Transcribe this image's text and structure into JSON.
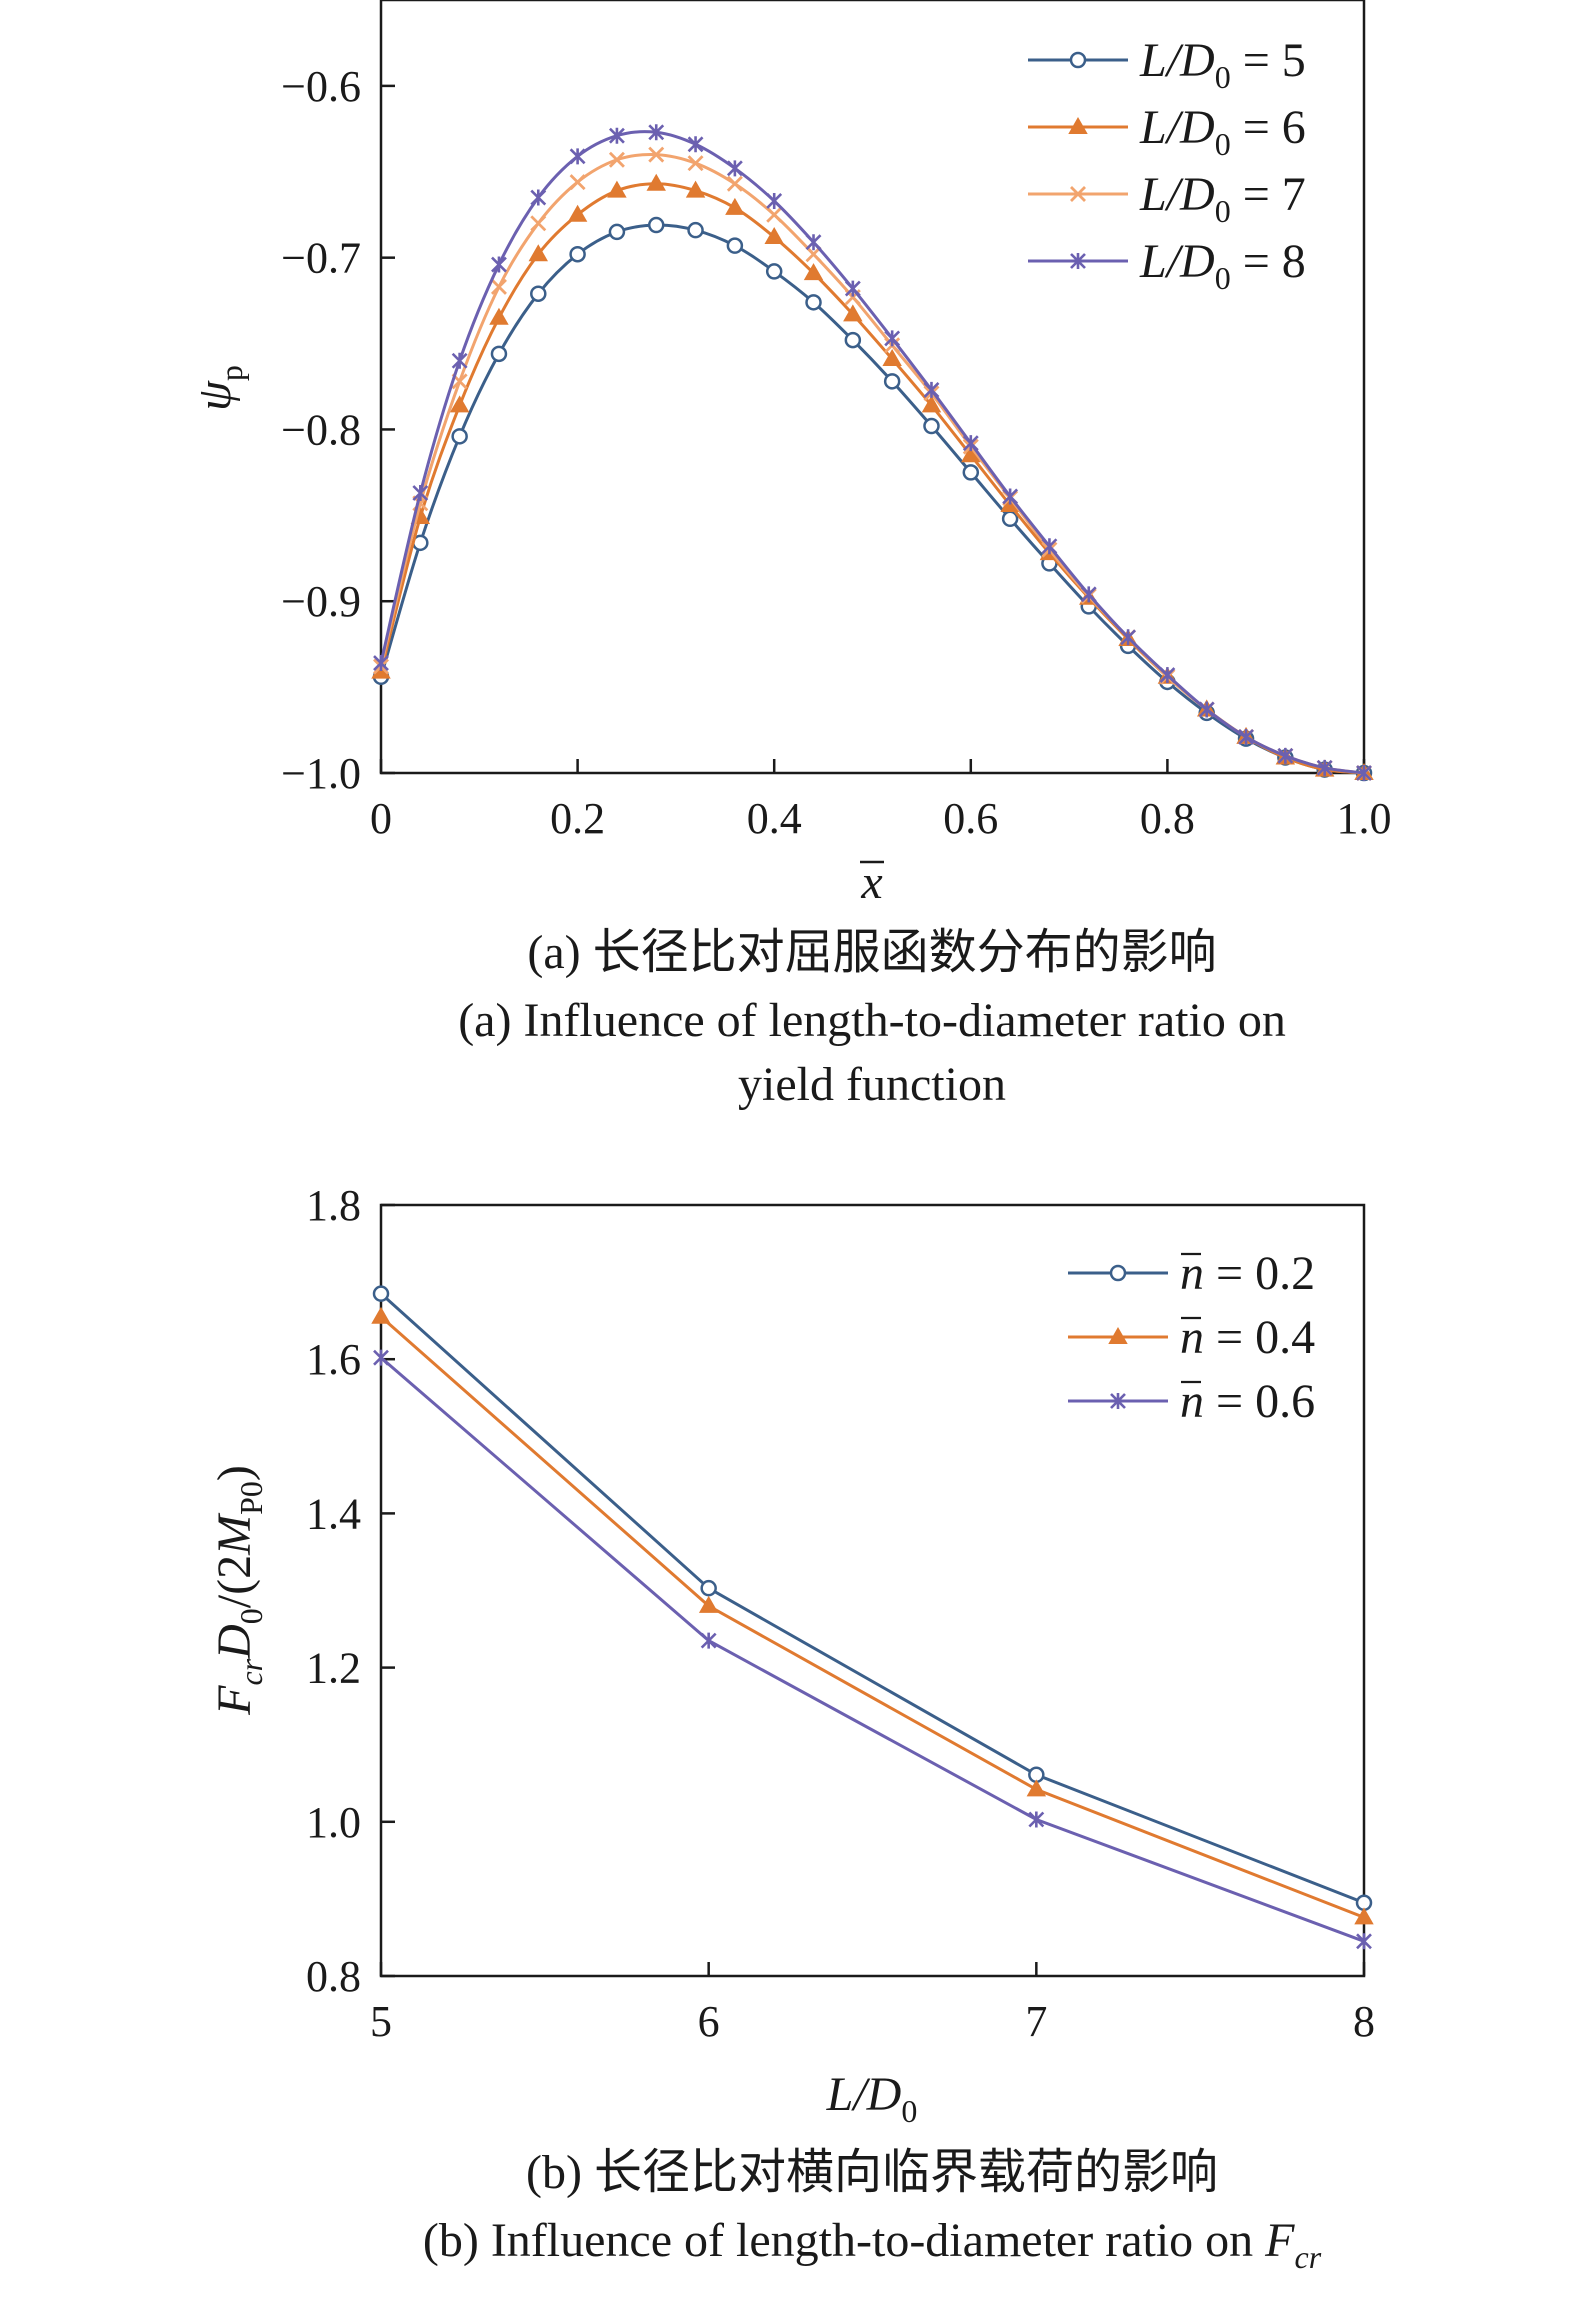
{
  "chart_data": [
    {
      "type": "line",
      "title": "",
      "xlabel": "x",
      "ylabel": "ψ",
      "ylabel_sub": "p",
      "xlim": [
        0,
        1.0
      ],
      "ylim": [
        -1.0,
        -0.55
      ],
      "x_ticks": [
        0,
        0.2,
        0.4,
        0.6,
        0.8,
        1.0
      ],
      "x_tick_labels": [
        "0",
        "0.2",
        "0.4",
        "0.6",
        "0.8",
        "1.0"
      ],
      "y_ticks": [
        -1.0,
        -0.9,
        -0.8,
        -0.7,
        -0.6
      ],
      "y_tick_labels": [
        "−1.0",
        "−0.9",
        "−0.8",
        "−0.7",
        "−0.6"
      ],
      "grid": false,
      "legend_position": "top-right",
      "x": [
        0,
        0.04,
        0.08,
        0.12,
        0.16,
        0.2,
        0.24,
        0.28,
        0.32,
        0.36,
        0.4,
        0.44,
        0.48,
        0.52,
        0.56,
        0.6,
        0.64,
        0.68,
        0.72,
        0.76,
        0.8,
        0.84,
        0.88,
        0.92,
        0.96,
        1.0
      ],
      "series": [
        {
          "name": "L/D₀ = 5",
          "legend_main": "L/D",
          "legend_sub": "0",
          "legend_val": " = 5",
          "color": "#3b5f8a",
          "marker": "circle",
          "values": [
            -0.944,
            -0.866,
            -0.804,
            -0.756,
            -0.721,
            -0.698,
            -0.685,
            -0.681,
            -0.684,
            -0.693,
            -0.708,
            -0.726,
            -0.748,
            -0.772,
            -0.798,
            -0.825,
            -0.852,
            -0.878,
            -0.903,
            -0.926,
            -0.947,
            -0.965,
            -0.98,
            -0.991,
            -0.998,
            -1.0
          ]
        },
        {
          "name": "L/D₀ = 6",
          "legend_main": "L/D",
          "legend_sub": "0",
          "legend_val": " = 6",
          "color": "#e07a30",
          "marker": "triangle",
          "values": [
            -0.941,
            -0.851,
            -0.786,
            -0.735,
            -0.698,
            -0.675,
            -0.661,
            -0.657,
            -0.661,
            -0.671,
            -0.688,
            -0.709,
            -0.733,
            -0.759,
            -0.786,
            -0.815,
            -0.844,
            -0.872,
            -0.898,
            -0.922,
            -0.944,
            -0.963,
            -0.979,
            -0.991,
            -0.998,
            -1.0
          ]
        },
        {
          "name": "L/D₀ = 7",
          "legend_main": "L/D",
          "legend_sub": "0",
          "legend_val": " = 7",
          "color": "#f2a46e",
          "marker": "x",
          "values": [
            -0.938,
            -0.843,
            -0.772,
            -0.717,
            -0.68,
            -0.656,
            -0.643,
            -0.64,
            -0.645,
            -0.657,
            -0.675,
            -0.698,
            -0.723,
            -0.751,
            -0.779,
            -0.81,
            -0.84,
            -0.87,
            -0.897,
            -0.921,
            -0.944,
            -0.963,
            -0.979,
            -0.99,
            -0.997,
            -1.0
          ]
        },
        {
          "name": "L/D₀ = 8",
          "legend_main": "L/D",
          "legend_sub": "0",
          "legend_val": " = 8",
          "color": "#6b60b0",
          "marker": "star",
          "values": [
            -0.936,
            -0.837,
            -0.76,
            -0.704,
            -0.665,
            -0.641,
            -0.629,
            -0.627,
            -0.634,
            -0.648,
            -0.667,
            -0.691,
            -0.718,
            -0.747,
            -0.777,
            -0.808,
            -0.839,
            -0.868,
            -0.896,
            -0.921,
            -0.943,
            -0.963,
            -0.979,
            -0.99,
            -0.997,
            -1.0
          ]
        }
      ]
    },
    {
      "type": "line",
      "title": "",
      "xlabel": "L/D₀",
      "ylabel": "F_cr D₀/(2M_P0)",
      "xlim": [
        5,
        8
      ],
      "ylim": [
        0.8,
        1.8
      ],
      "x_ticks": [
        5,
        6,
        7,
        8
      ],
      "x_tick_labels": [
        "5",
        "6",
        "7",
        "8"
      ],
      "y_ticks": [
        0.8,
        1.0,
        1.2,
        1.4,
        1.6,
        1.8
      ],
      "y_tick_labels": [
        "0.8",
        "1.0",
        "1.2",
        "1.4",
        "1.6",
        "1.8"
      ],
      "grid": false,
      "legend_position": "top-right",
      "x": [
        5,
        6,
        7,
        8
      ],
      "series": [
        {
          "name": "n = 0.2",
          "legend_val": " = 0.2",
          "color": "#3b5f8a",
          "marker": "circle",
          "values": [
            1.685,
            1.303,
            1.061,
            0.895
          ]
        },
        {
          "name": "n = 0.4",
          "legend_val": " = 0.4",
          "color": "#e07a30",
          "marker": "triangle",
          "values": [
            1.655,
            1.28,
            1.042,
            0.876
          ]
        },
        {
          "name": "n = 0.6",
          "legend_val": " = 0.6",
          "color": "#6b60b0",
          "marker": "star",
          "values": [
            1.602,
            1.235,
            1.003,
            0.845
          ]
        }
      ]
    }
  ],
  "captions": {
    "a_cn": "(a) 长径比对屈服函数分布的影响",
    "a_en_line1": "(a) Influence of length-to-diameter ratio on",
    "a_en_line2": "yield function",
    "b_cn": "(b) 长径比对横向临界载荷的影响",
    "b_en": "(b) Influence of length-to-diameter ratio on ",
    "b_en_sym": "F",
    "b_en_sub": "cr"
  },
  "axis_text": {
    "a_xlabel": "x",
    "a_ylabel": "ψ",
    "a_ylabel_sub": "p",
    "b_xlabel_main": "L/D",
    "b_xlabel_sub": "0",
    "b_ylabel_F": "F",
    "b_ylabel_cr": "cr",
    "b_ylabel_D": "D",
    "b_ylabel_0": "0",
    "b_ylabel_mid": "/(2",
    "b_ylabel_M": "M",
    "b_ylabel_P0": "P0",
    "b_ylabel_end": ")",
    "b_legend_n": "n"
  }
}
